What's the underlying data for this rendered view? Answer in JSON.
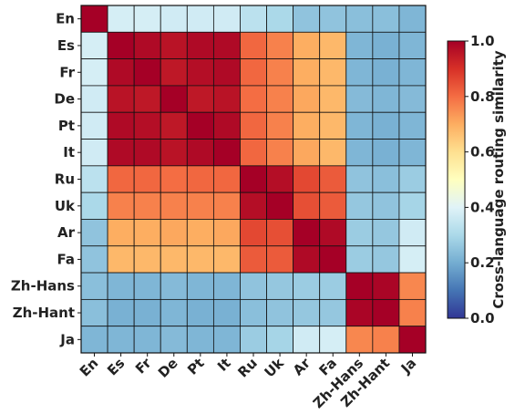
{
  "chart_data": {
    "type": "heatmap",
    "title": "",
    "xlabel": "",
    "ylabel": "",
    "x_categories": [
      "En",
      "Es",
      "Fr",
      "De",
      "Pt",
      "It",
      "Ru",
      "Uk",
      "Ar",
      "Fa",
      "Zh-Hans",
      "Zh-Hant",
      "Ja"
    ],
    "y_categories": [
      "En",
      "Es",
      "Fr",
      "De",
      "Pt",
      "It",
      "Ru",
      "Uk",
      "Ar",
      "Fa",
      "Zh-Hans",
      "Zh-Hant",
      "Ja"
    ],
    "values": [
      [
        1.0,
        0.38,
        0.38,
        0.37,
        0.37,
        0.37,
        0.33,
        0.3,
        0.25,
        0.25,
        0.24,
        0.24,
        0.22
      ],
      [
        0.38,
        1.0,
        0.98,
        0.96,
        0.98,
        0.98,
        0.81,
        0.77,
        0.7,
        0.68,
        0.22,
        0.21,
        0.22
      ],
      [
        0.38,
        0.98,
        1.0,
        0.95,
        0.97,
        0.98,
        0.81,
        0.77,
        0.7,
        0.68,
        0.22,
        0.21,
        0.22
      ],
      [
        0.37,
        0.96,
        0.95,
        1.0,
        0.95,
        0.96,
        0.8,
        0.77,
        0.71,
        0.68,
        0.23,
        0.22,
        0.23
      ],
      [
        0.37,
        0.98,
        0.97,
        0.95,
        1.0,
        0.98,
        0.81,
        0.77,
        0.7,
        0.68,
        0.22,
        0.21,
        0.22
      ],
      [
        0.37,
        0.98,
        0.98,
        0.96,
        0.98,
        1.0,
        0.81,
        0.77,
        0.71,
        0.68,
        0.22,
        0.21,
        0.22
      ],
      [
        0.33,
        0.81,
        0.81,
        0.8,
        0.81,
        0.81,
        1.0,
        0.97,
        0.86,
        0.83,
        0.25,
        0.24,
        0.27
      ],
      [
        0.3,
        0.77,
        0.77,
        0.77,
        0.77,
        0.77,
        0.97,
        1.0,
        0.85,
        0.83,
        0.26,
        0.25,
        0.29
      ],
      [
        0.25,
        0.7,
        0.7,
        0.71,
        0.7,
        0.71,
        0.86,
        0.85,
        1.0,
        0.98,
        0.27,
        0.26,
        0.37
      ],
      [
        0.25,
        0.68,
        0.68,
        0.68,
        0.68,
        0.68,
        0.83,
        0.83,
        0.98,
        1.0,
        0.27,
        0.26,
        0.38
      ],
      [
        0.24,
        0.22,
        0.22,
        0.23,
        0.22,
        0.22,
        0.25,
        0.26,
        0.27,
        0.27,
        1.0,
        0.99,
        0.76
      ],
      [
        0.24,
        0.21,
        0.21,
        0.22,
        0.21,
        0.21,
        0.24,
        0.25,
        0.26,
        0.26,
        0.99,
        1.0,
        0.77
      ],
      [
        0.22,
        0.22,
        0.22,
        0.23,
        0.22,
        0.22,
        0.27,
        0.29,
        0.37,
        0.38,
        0.76,
        0.77,
        1.0
      ]
    ],
    "colorbar": {
      "label": "Cross-language routing similarity",
      "range": [
        0.0,
        1.0
      ],
      "ticks": [
        "0.0",
        "0.2",
        "0.4",
        "0.6",
        "0.8",
        "1.0"
      ],
      "colormap": "RdYlBu_r"
    }
  }
}
